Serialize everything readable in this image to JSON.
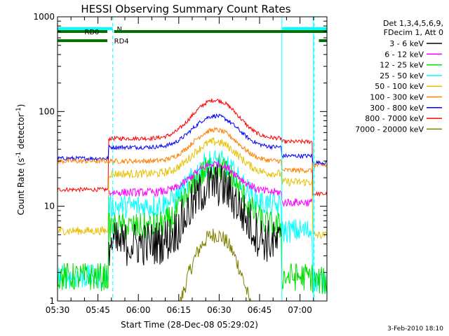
{
  "chart_data": {
    "type": "line",
    "title": "HESSI Observing Summary Count Rates",
    "xlabel": "Start Time (28-Dec-08 05:29:02)",
    "ylabel": "Count Rate (s",
    "ylabel_sup1": "-1",
    "ylabel_mid": " detector",
    "ylabel_sup2": "-1",
    "ylabel_end": ")",
    "x_unit": "minutes after 05:30 UT",
    "xlim": [
      0,
      100
    ],
    "ylim": [
      1,
      1000
    ],
    "yscale": "log",
    "x_ticks": [
      {
        "value": 0,
        "label": "05:30"
      },
      {
        "value": 15,
        "label": "05:45"
      },
      {
        "value": 30,
        "label": "06:00"
      },
      {
        "value": 45,
        "label": "06:15"
      },
      {
        "value": 60,
        "label": "06:30"
      },
      {
        "value": 75,
        "label": "06:45"
      },
      {
        "value": 90,
        "label": "07:00"
      }
    ],
    "y_ticks": [
      {
        "value": 1,
        "label": "1"
      },
      {
        "value": 10,
        "label": "10"
      },
      {
        "value": 100,
        "label": "100"
      },
      {
        "value": 1000,
        "label": "1000"
      }
    ],
    "legend_header": [
      "Det 1,3,4,5,6,9,",
      "FDecim 1, Att 0"
    ],
    "legend_position": "right",
    "bars": [
      {
        "label": "N",
        "color": "#00ffff",
        "y": 750,
        "segments": [
          [
            0,
            20.5
          ],
          [
            83.5,
            100
          ]
        ],
        "label_x": 22
      },
      {
        "label": "RD0",
        "color": "#007000",
        "y": 700,
        "segments": [
          [
            0,
            18.5
          ],
          [
            21,
            100
          ]
        ],
        "label_x": 10
      },
      {
        "label": "RD4",
        "color": "#007000",
        "y": 560,
        "segments": [
          [
            0,
            18.5
          ],
          [
            97,
            100
          ]
        ],
        "label_x": 21
      }
    ],
    "vlines": [
      {
        "x": 20.5,
        "color": "#00ffff",
        "style": "dashed"
      },
      {
        "x": 95.3,
        "color": "#00ffff",
        "style": "dashed"
      },
      {
        "x": 83.3,
        "color": "#00ffff",
        "style": "solid"
      },
      {
        "x": 95.0,
        "color": "#00ffff",
        "style": "solid"
      }
    ],
    "series": [
      {
        "name": "3 - 6 keV",
        "color": "#000000",
        "pre": 0,
        "base": 4,
        "peak": 17,
        "post": 0,
        "noise": 0.55
      },
      {
        "name": "6 - 12 keV",
        "color": "#ff00ff",
        "pre": 0,
        "base": 14,
        "peak": 28,
        "post": 11,
        "noise": 0.1
      },
      {
        "name": "12 - 25 keV",
        "color": "#00dd00",
        "pre": 1.8,
        "base": 6,
        "peak": 26,
        "post": 1.8,
        "noise": 0.35
      },
      {
        "name": "25 - 50 keV",
        "color": "#00ffff",
        "pre": 1.8,
        "base": 10,
        "peak": 30,
        "post": 5.5,
        "noise": 0.3
      },
      {
        "name": "50 - 100 keV",
        "color": "#e8c000",
        "pre": 5.5,
        "base": 22,
        "peak": 48,
        "post": 18,
        "noise": 0.1
      },
      {
        "name": "100 - 300 keV",
        "color": "#ff8000",
        "pre": 30,
        "base": 30,
        "peak": 64,
        "post": 24,
        "noise": 0.06
      },
      {
        "name": "300 - 800 keV",
        "color": "#0000ff",
        "pre": 32,
        "base": 42,
        "peak": 90,
        "post": 34,
        "noise": 0.05
      },
      {
        "name": "800 - 7000 keV",
        "color": "#ff0000",
        "pre": 15,
        "base": 52,
        "peak": 132,
        "post": 48,
        "noise": 0.05
      },
      {
        "name": "7000 - 20000 keV",
        "color": "#808000",
        "pre": 0,
        "base": 0,
        "peak": 5,
        "post": 0,
        "noise": 0.2
      }
    ]
  },
  "footer": "3-Feb-2010 18:10"
}
